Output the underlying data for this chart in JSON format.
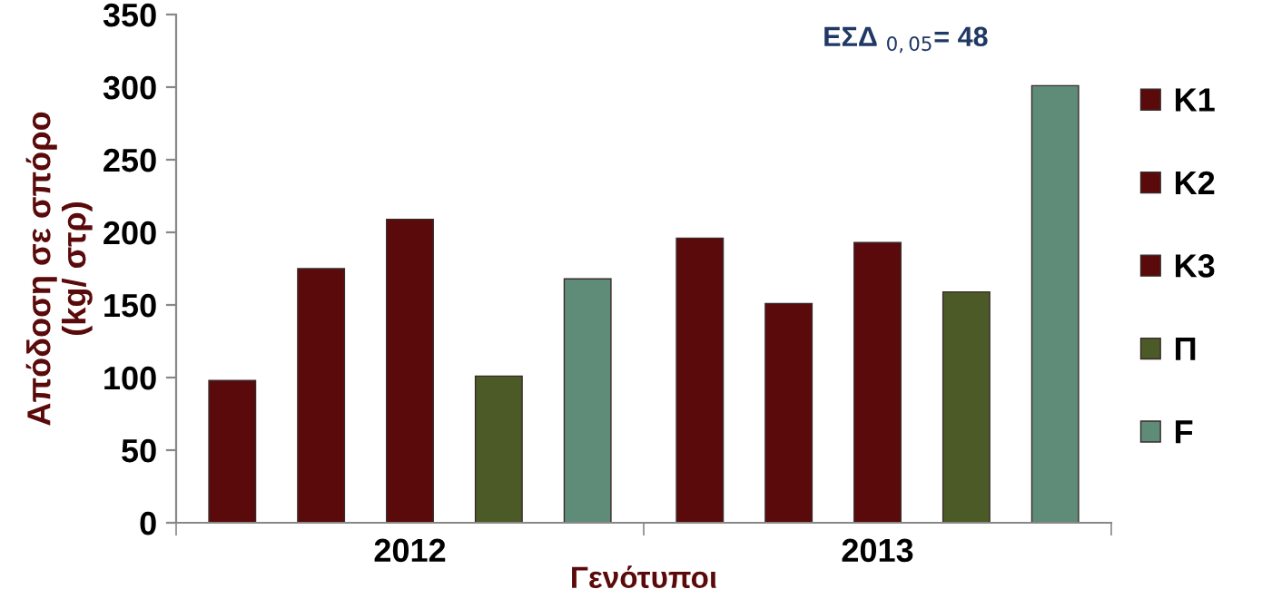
{
  "chart_data": {
    "type": "bar",
    "xlabel": "Γενότυποι",
    "ylabel": "Απόδοση σε σπόρο\n(kg/ στρ)",
    "categories": [
      "2012",
      "2013"
    ],
    "series": [
      {
        "name": "K1",
        "color": "#5a0a0a",
        "values": [
          98,
          196
        ]
      },
      {
        "name": "K2",
        "color": "#5a0a0a",
        "values": [
          175,
          151
        ]
      },
      {
        "name": "K3",
        "color": "#5a0a0a",
        "values": [
          209,
          193
        ]
      },
      {
        "name": "Π",
        "color": "#4b5a26",
        "values": [
          101,
          159
        ]
      },
      {
        "name": "F",
        "color": "#5e8c78",
        "values": [
          168,
          301
        ]
      }
    ],
    "ylim": [
      0,
      350
    ],
    "yticks": [
      0,
      50,
      100,
      150,
      200,
      250,
      300,
      350
    ],
    "grid": false,
    "legend": "right",
    "annotations": [
      "ΕΣΔ $_{0,05}$= 48"
    ]
  }
}
